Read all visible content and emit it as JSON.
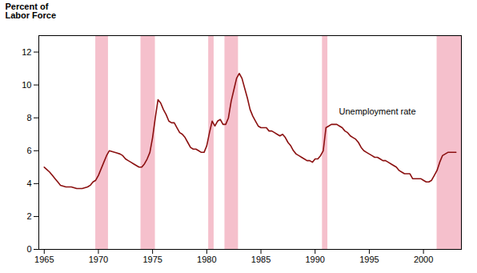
{
  "chart_data": {
    "type": "line",
    "title": "",
    "ylabel": [
      "Percent of",
      "Labor Force"
    ],
    "color": "#8b1010",
    "recession_color": "#f5c0cc",
    "recession_bands": [
      [
        1969.75,
        1970.92
      ],
      [
        1973.92,
        1975.25
      ],
      [
        1980.17,
        1980.67
      ],
      [
        1981.67,
        1982.92
      ],
      [
        1990.67,
        1991.17
      ],
      [
        2001.25,
        2003.5
      ]
    ],
    "annotations": [
      {
        "text": "Unemployment rate",
        "x": 1992.2,
        "y": 8.4
      }
    ],
    "xlim": [
      1964.5,
      2003.5
    ],
    "ylim": [
      0,
      13
    ],
    "xticks": [
      1965,
      1970,
      1975,
      1980,
      1985,
      1990,
      1995,
      2000
    ],
    "yticks": [
      0,
      2,
      4,
      6,
      8,
      10,
      12
    ],
    "grid": false,
    "x": [
      1965.0,
      1965.25,
      1965.5,
      1965.75,
      1966.0,
      1966.25,
      1966.5,
      1966.75,
      1967.0,
      1967.25,
      1967.5,
      1967.75,
      1968.0,
      1968.25,
      1968.5,
      1968.75,
      1969.0,
      1969.25,
      1969.5,
      1969.75,
      1970.0,
      1970.25,
      1970.5,
      1970.75,
      1971.0,
      1971.25,
      1971.5,
      1971.75,
      1972.0,
      1972.25,
      1972.5,
      1972.75,
      1973.0,
      1973.25,
      1973.5,
      1973.75,
      1974.0,
      1974.25,
      1974.5,
      1974.75,
      1975.0,
      1975.25,
      1975.5,
      1975.75,
      1976.0,
      1976.25,
      1976.5,
      1976.75,
      1977.0,
      1977.25,
      1977.5,
      1977.75,
      1978.0,
      1978.25,
      1978.5,
      1978.75,
      1979.0,
      1979.25,
      1979.5,
      1979.75,
      1980.0,
      1980.25,
      1980.5,
      1980.75,
      1981.0,
      1981.25,
      1981.5,
      1981.75,
      1982.0,
      1982.25,
      1982.5,
      1982.75,
      1983.0,
      1983.25,
      1983.5,
      1983.75,
      1984.0,
      1984.25,
      1984.5,
      1984.75,
      1985.0,
      1985.25,
      1985.5,
      1985.75,
      1986.0,
      1986.25,
      1986.5,
      1986.75,
      1987.0,
      1987.25,
      1987.5,
      1987.75,
      1988.0,
      1988.25,
      1988.5,
      1988.75,
      1989.0,
      1989.25,
      1989.5,
      1989.75,
      1990.0,
      1990.25,
      1990.5,
      1990.75,
      1991.0,
      1991.25,
      1991.5,
      1991.75,
      1992.0,
      1992.25,
      1992.5,
      1992.75,
      1993.0,
      1993.25,
      1993.5,
      1993.75,
      1994.0,
      1994.25,
      1994.5,
      1994.75,
      1995.0,
      1995.25,
      1995.5,
      1995.75,
      1996.0,
      1996.25,
      1996.5,
      1996.75,
      1997.0,
      1997.25,
      1997.5,
      1997.75,
      1998.0,
      1998.25,
      1998.5,
      1998.75,
      1999.0,
      1999.25,
      1999.5,
      1999.75,
      2000.0,
      2000.25,
      2000.5,
      2000.75,
      2001.0,
      2001.25,
      2001.5,
      2001.75,
      2002.0,
      2002.25,
      2002.5,
      2002.75,
      2003.0
    ],
    "values": [
      5.0,
      4.85,
      4.7,
      4.5,
      4.3,
      4.1,
      3.9,
      3.85,
      3.8,
      3.8,
      3.8,
      3.75,
      3.7,
      3.7,
      3.7,
      3.75,
      3.8,
      3.9,
      4.1,
      4.2,
      4.5,
      4.9,
      5.3,
      5.7,
      6.0,
      5.95,
      5.9,
      5.85,
      5.8,
      5.7,
      5.5,
      5.4,
      5.3,
      5.2,
      5.1,
      5.0,
      5.0,
      5.2,
      5.5,
      5.9,
      6.8,
      8.0,
      9.1,
      8.9,
      8.5,
      8.2,
      7.8,
      7.7,
      7.7,
      7.4,
      7.1,
      7.0,
      6.8,
      6.5,
      6.2,
      6.1,
      6.1,
      6.0,
      5.9,
      5.9,
      6.3,
      7.1,
      7.8,
      7.5,
      7.8,
      7.9,
      7.6,
      7.6,
      8.0,
      9.0,
      9.7,
      10.4,
      10.7,
      10.4,
      9.8,
      9.2,
      8.5,
      8.1,
      7.8,
      7.5,
      7.4,
      7.4,
      7.4,
      7.2,
      7.2,
      7.1,
      7.0,
      6.9,
      7.0,
      6.8,
      6.5,
      6.3,
      6.0,
      5.8,
      5.7,
      5.6,
      5.5,
      5.4,
      5.4,
      5.3,
      5.5,
      5.5,
      5.7,
      6.0,
      7.4,
      7.5,
      7.6,
      7.6,
      7.6,
      7.5,
      7.4,
      7.2,
      7.1,
      6.9,
      6.8,
      6.7,
      6.5,
      6.2,
      6.0,
      5.9,
      5.8,
      5.7,
      5.6,
      5.6,
      5.5,
      5.4,
      5.4,
      5.3,
      5.2,
      5.1,
      5.0,
      4.8,
      4.7,
      4.6,
      4.6,
      4.6,
      4.3,
      4.3,
      4.3,
      4.3,
      4.2,
      4.1,
      4.1,
      4.2,
      4.5,
      4.8,
      5.3,
      5.7,
      5.8,
      5.9,
      5.9,
      5.9,
      5.9
    ]
  }
}
